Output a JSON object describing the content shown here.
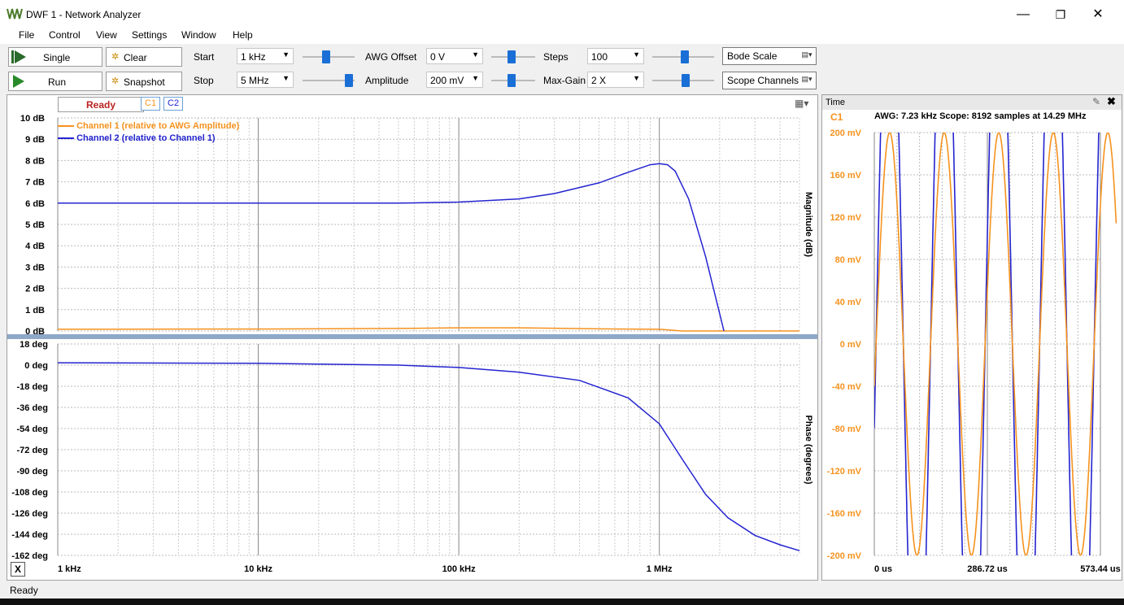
{
  "window": {
    "title": "DWF 1 - Network Analyzer",
    "minimize": "—",
    "restore": "❐",
    "close": "✕"
  },
  "menu": [
    "File",
    "Control",
    "View",
    "Settings",
    "Window",
    "Help"
  ],
  "toolbar": {
    "single_label": "Single",
    "run_label": "Run",
    "clear_label": "Clear",
    "snapshot_label": "Snapshot",
    "start_label": "Start",
    "start_value": "1 kHz",
    "stop_label": "Stop",
    "stop_value": "5 MHz",
    "awg_offset_label": "AWG Offset",
    "awg_offset_value": "0 V",
    "amplitude_label": "Amplitude",
    "amplitude_value": "200 mV",
    "steps_label": "Steps",
    "steps_value": "100",
    "maxgain_label": "Max-Gain",
    "maxgain_value": "2 X",
    "bode_scale_label": "Bode Scale",
    "scope_channels_label": "Scope Channels"
  },
  "plot": {
    "status": "Ready",
    "c1_tab": "C1",
    "c2_tab": "C2",
    "legend": [
      "Channel 1 (relative to AWG Amplitude)",
      "Channel 2 (relative to Channel 1)"
    ],
    "magnitude_axis_label": "Magnitude (dB)",
    "phase_axis_label": "Phase (degrees)",
    "x_button": "X",
    "colors": {
      "ch1": "#f5921e",
      "ch2": "#2424d0"
    }
  },
  "chart_data": [
    {
      "type": "line",
      "ylabel": "Magnitude (dB)",
      "x_ticks": [
        "1 kHz",
        "10 kHz",
        "100 kHz",
        "1 MHz"
      ],
      "y_ticks": [
        "10 dB",
        "9 dB",
        "8 dB",
        "7 dB",
        "6 dB",
        "5 dB",
        "4 dB",
        "3 dB",
        "2 dB",
        "1 dB",
        "0 dB"
      ],
      "xlim": [
        1000,
        5000000
      ],
      "ylim": [
        0,
        10
      ],
      "xscale": "log",
      "series": [
        {
          "name": "Channel 1 (relative to AWG Amplitude)",
          "x": [
            1000,
            10000,
            50000,
            100000,
            200000,
            500000,
            1000000,
            1300000,
            5000000
          ],
          "y": [
            0.08,
            0.09,
            0.12,
            0.15,
            0.15,
            0.1,
            0.08,
            0,
            0
          ]
        },
        {
          "name": "Channel 2 (relative to Channel 1)",
          "x": [
            1000,
            10000,
            50000,
            100000,
            200000,
            300000,
            500000,
            700000,
            900000,
            1000000,
            1100000,
            1200000,
            1400000,
            1700000,
            2100000
          ],
          "y": [
            6.0,
            6.0,
            6.0,
            6.05,
            6.2,
            6.45,
            6.95,
            7.45,
            7.8,
            7.85,
            7.8,
            7.5,
            6.2,
            3.5,
            0
          ]
        }
      ]
    },
    {
      "type": "line",
      "ylabel": "Phase (degrees)",
      "x_ticks": [
        "1 kHz",
        "10 kHz",
        "100 kHz",
        "1 MHz"
      ],
      "y_ticks": [
        "18 deg",
        "0 deg",
        "-18 deg",
        "-36 deg",
        "-54 deg",
        "-72 deg",
        "-90 deg",
        "-108 deg",
        "-126 deg",
        "-144 deg",
        "-162 deg"
      ],
      "xlim": [
        1000,
        5000000
      ],
      "ylim": [
        -162,
        18
      ],
      "xscale": "log",
      "series": [
        {
          "name": "Channel 2 (relative to Channel 1)",
          "x": [
            1000,
            10000,
            50000,
            100000,
            200000,
            400000,
            700000,
            1000000,
            1300000,
            1700000,
            2200000,
            3000000,
            4000000,
            5000000
          ],
          "y": [
            2,
            1.5,
            0,
            -2,
            -6,
            -13,
            -28,
            -50,
            -80,
            -110,
            -130,
            -145,
            -153,
            -158
          ]
        }
      ]
    },
    {
      "type": "line",
      "title": "AWG: 7.23 kHz Scope: 8192 samples at 14.29 MHz",
      "xlabel": "Time",
      "x_ticks": [
        "0 us",
        "286.72 us",
        "573.44 us"
      ],
      "y_ticks": [
        "200 mV",
        "160 mV",
        "120 mV",
        "80 mV",
        "40 mV",
        "0 mV",
        "-40 mV",
        "-80 mV",
        "-120 mV",
        "-160 mV",
        "-200 mV"
      ],
      "xlim": [
        0,
        573.44
      ],
      "ylim": [
        -200,
        200
      ],
      "series": [
        {
          "name": "C1",
          "amplitude_mV": 200,
          "frequency_kHz": 7.23
        },
        {
          "name": "C2",
          "amplitude_mV": 400,
          "frequency_kHz": 7.23
        }
      ]
    }
  ],
  "time_panel": {
    "title": "Time",
    "channel": "C1",
    "info": "AWG: 7.23 kHz Scope: 8192 samples at 14.29 MHz"
  },
  "status": "Ready"
}
